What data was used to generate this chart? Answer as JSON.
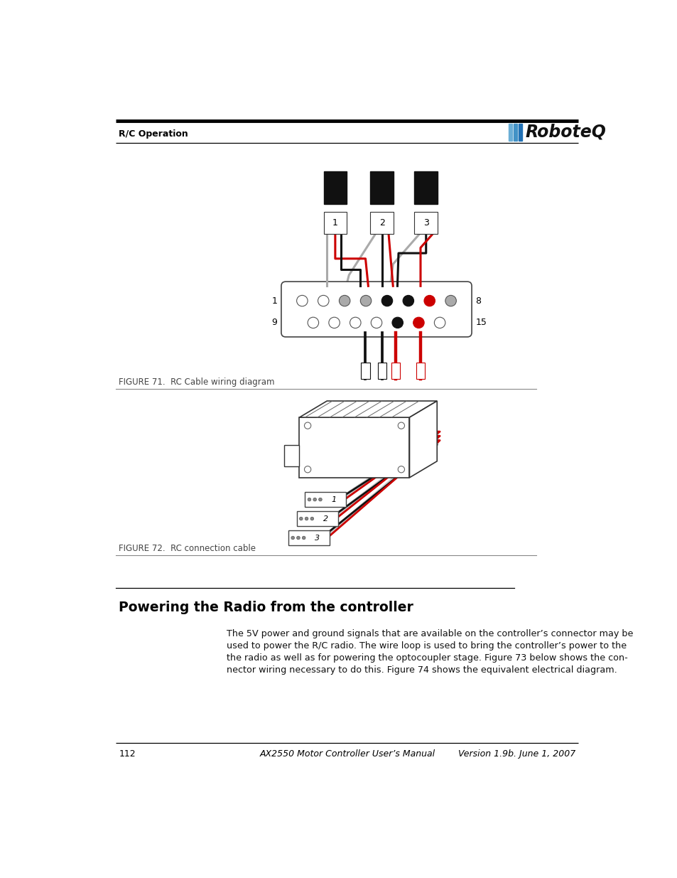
{
  "page_width": 9.54,
  "page_height": 12.35,
  "background_color": "#ffffff",
  "header_text_left": "R/C Operation",
  "footer_page": "112",
  "footer_center": "AX2550 Motor Controller User’s Manual",
  "footer_right": "Version 1.9b. June 1, 2007",
  "fig71_caption": "FIGURE 71.  RC Cable wiring diagram",
  "fig72_caption": "FIGURE 72.  RC connection cable",
  "section_title": "Powering the Radio from the controller",
  "section_body_lines": [
    "The 5V power and ground signals that are available on the controller’s connector may be",
    "used to power the R/C radio. The wire loop is used to bring the controller’s power to the",
    "the radio as well as for powering the optocoupler stage. Figure 73 below shows the con-",
    "nector wiring necessary to do this. Figure 74 shows the equivalent electrical diagram."
  ],
  "color_black": "#111111",
  "color_red": "#cc0000",
  "color_gray": "#aaaaaa",
  "color_lightgray": "#dddddd",
  "color_white": "#ffffff",
  "color_darkgray": "#555555"
}
